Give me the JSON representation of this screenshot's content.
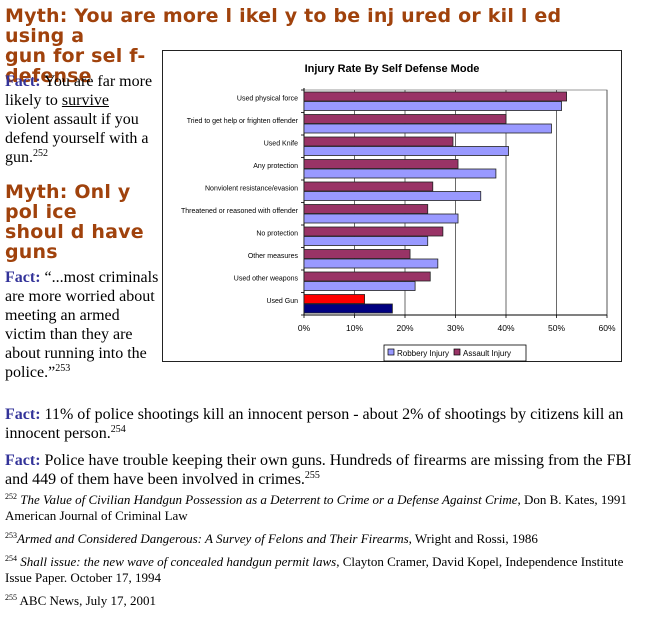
{
  "sections": {
    "myth1": {
      "heading": "Myth: You are more l ikel y to be inj ured or kil l ed using a gun for sel f-defense",
      "heading_lines": [
        "Myth: You are more l ikel y to be inj ured or kil l ed using a",
        "gun for sel f-",
        "defense"
      ],
      "fact_label": "Fact:",
      "fact_pre": " You are far more likely to ",
      "fact_underlined": "survive",
      "fact_post": " violent assault if you defend yourself with a gun.",
      "fact_ref": "252"
    },
    "myth2": {
      "heading_lines": [
        "Myth: Onl y",
        "pol ice",
        "shoul d have",
        "guns"
      ],
      "fact_label": "Fact:",
      "fact_text": " “...most criminals are more worried about meeting an armed victim than they are about running into the police.”",
      "fact_ref": "253"
    },
    "fact3": {
      "label": "Fact:",
      "text": " 11% of police shootings kill an innocent person - about 2% of shootings by citizens kill an innocent person.",
      "ref": "254"
    },
    "fact4": {
      "label": "Fact:",
      "text": " Police have trouble keeping their own guns.  Hundreds of firearms are missing from the FBI and 449 of them have been involved in crimes.",
      "ref": "255"
    }
  },
  "footnotes": [
    {
      "num": "252",
      "title": "The Value of Civilian Handgun Possession as a Deterrent to Crime or a Defense Against Crime",
      "rest": ", Don B. Kates, 1991 American Journal of Criminal Law"
    },
    {
      "num": "253",
      "title": "Armed and Considered Dangerous: A Survey of Felons and Their Firearms",
      "rest": ", Wright and Rossi, 1986"
    },
    {
      "num": "254",
      "title": "Shall issue: the new wave of concealed handgun permit laws",
      "rest": ", Clayton Cramer, David Kopel,  Independence Institute Issue Paper. October 17, 1994"
    },
    {
      "num": "255",
      "title": "",
      "rest": " ABC News, July 17, 2001"
    }
  ],
  "chart_data": {
    "type": "bar",
    "orientation": "horizontal",
    "title": "Injury Rate By Self Defense Mode",
    "xlabel": "",
    "ylabel": "",
    "xlim": [
      0,
      60
    ],
    "x_ticks": [
      "0%",
      "10%",
      "20%",
      "30%",
      "40%",
      "50%",
      "60%"
    ],
    "grid": true,
    "legend_position": "bottom",
    "categories": [
      "Used physical force",
      "Tried to get help or frighten offender",
      "Used Knife",
      "Any protection",
      "Nonviolent resistance/evasion",
      "Threatened or reasoned with offender",
      "No protection",
      "Other measures",
      "Used other weapons",
      "Used Gun"
    ],
    "series": [
      {
        "name": "Assault Injury",
        "color": "#993366",
        "values": [
          52,
          40,
          29.5,
          30.5,
          25.5,
          24.5,
          27.5,
          21,
          25,
          12
        ]
      },
      {
        "name": "Robbery Injury",
        "color": "#9999ff",
        "values": [
          51,
          49,
          40.5,
          38,
          35,
          30.5,
          24.5,
          26.5,
          22,
          17.5
        ]
      }
    ],
    "highlight": {
      "category": "Used Gun",
      "assault_color": "#ff0000",
      "robbery_color": "#000080"
    },
    "legend": [
      {
        "label": "Robbery Injury",
        "color": "#9999ff"
      },
      {
        "label": "Assault Injury",
        "color": "#993366"
      }
    ]
  }
}
